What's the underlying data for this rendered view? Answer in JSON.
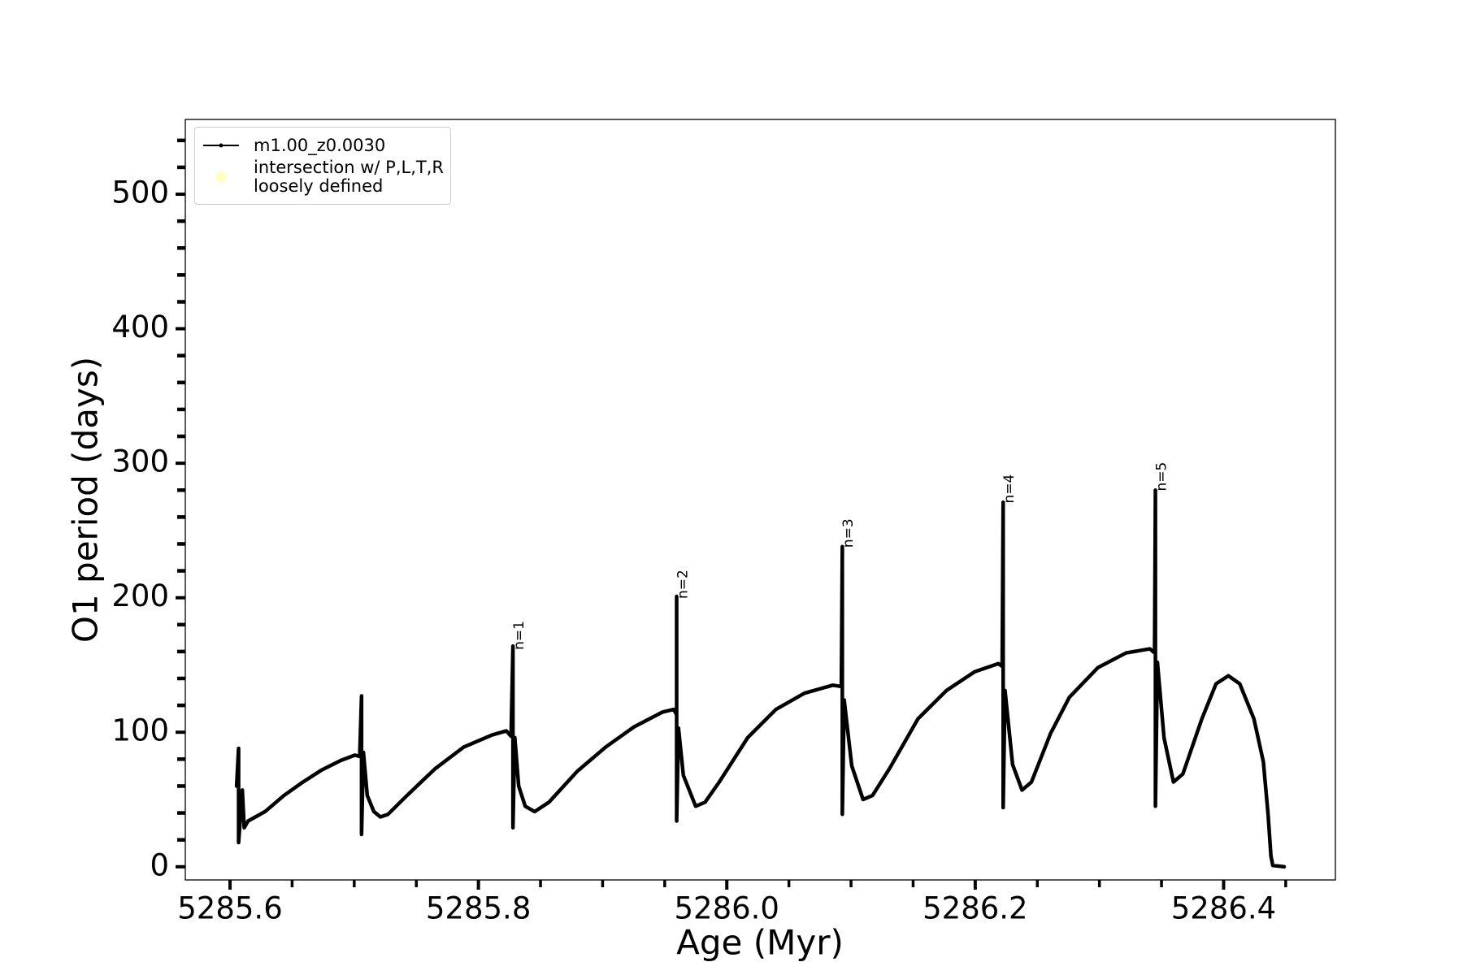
{
  "chart_data": {
    "type": "line",
    "xlabel": "Age (Myr)",
    "ylabel": "O1 period (days)",
    "xlim": [
      5285.564,
      5286.49
    ],
    "ylim": [
      -9.8,
      555.6
    ],
    "xticks": [
      5285.6,
      5285.8,
      {
        "value": 5286,
        "label": "5286.0"
      },
      5286.2,
      5286.4
    ],
    "xticks_minor": [
      5285.65,
      5285.7,
      5285.75,
      5285.85,
      5285.9,
      5285.95,
      5286.05,
      5286.1,
      5286.15,
      5286.25,
      5286.3,
      5286.35,
      5286.45
    ],
    "yticks": [
      0,
      100,
      200,
      300,
      400,
      500
    ],
    "yticks_minor": [
      20,
      40,
      60,
      80,
      120,
      140,
      160,
      180,
      220,
      240,
      260,
      280,
      320,
      340,
      360,
      380,
      420,
      440,
      460,
      480,
      520,
      540
    ],
    "legend": "upper left",
    "series": [
      {
        "name": "m1.00_z0.0030",
        "color": "#000000",
        "type": "line",
        "x": [
          5285.6053,
          5285.6069,
          5285.6069,
          5285.6099,
          5285.6114,
          5285.6145,
          5285.6282,
          5285.6434,
          5285.6587,
          5285.6739,
          5285.6891,
          5285.7006,
          5285.7044,
          5285.7059,
          5285.7059,
          5285.7074,
          5285.7105,
          5285.7158,
          5285.7211,
          5285.7272,
          5285.7425,
          5285.7653,
          5285.7882,
          5285.811,
          5285.8225,
          5285.8263,
          5285.8278,
          5285.8278,
          5285.8293,
          5285.8324,
          5285.8377,
          5285.8453,
          5285.8568,
          5285.8796,
          5285.9025,
          5285.9253,
          5285.9482,
          5285.9573,
          5285.9596,
          5285.9596,
          5285.9596,
          5285.9611,
          5285.965,
          5285.9749,
          5285.9825,
          5285.9939,
          5286.0168,
          5286.0396,
          5286.0625,
          5286.0853,
          5286.0922,
          5286.093,
          5286.093,
          5286.0945,
          5286.1006,
          5286.1097,
          5286.1173,
          5286.131,
          5286.1539,
          5286.1768,
          5286.1996,
          5286.2187,
          5286.2217,
          5286.2225,
          5286.2225,
          5286.224,
          5286.2301,
          5286.2377,
          5286.2453,
          5286.2606,
          5286.2758,
          5286.2987,
          5286.3215,
          5286.3406,
          5286.3444,
          5286.3451,
          5286.3451,
          5286.3467,
          5286.352,
          5286.3596,
          5286.3672,
          5286.3825,
          5286.3939,
          5286.4038,
          5286.413,
          5286.4244,
          5286.432,
          5286.4358,
          5286.4381,
          5286.4396,
          5286.4488
        ],
        "values": [
          60,
          88,
          18,
          57,
          29,
          34,
          41,
          53,
          63,
          72,
          79,
          83,
          82,
          127,
          24,
          85,
          53,
          41,
          37,
          39,
          53,
          73,
          89,
          98,
          101,
          97,
          164,
          29,
          96,
          60,
          45,
          41,
          48,
          71,
          89,
          104,
          115,
          117,
          113,
          201,
          34,
          103,
          68,
          45,
          48,
          63,
          96,
          117,
          129,
          135,
          134,
          238,
          39,
          124,
          75,
          50,
          53,
          73,
          110,
          131,
          145,
          151,
          149,
          271,
          44,
          131,
          76,
          57,
          63,
          99,
          126,
          148,
          159,
          162,
          159,
          280,
          45,
          152,
          96,
          63,
          69,
          110,
          136,
          142,
          136,
          110,
          78,
          39,
          8,
          1,
          0
        ]
      },
      {
        "name": "intersection w/ P,L,T,R\nloosely defined",
        "color": "#ffffc4",
        "type": "scatter",
        "x": [],
        "values": []
      }
    ],
    "annotations": [
      {
        "text": "n=1",
        "x": 5285.8316,
        "y": 160
      },
      {
        "text": "n=2",
        "x": 5285.9634,
        "y": 198
      },
      {
        "text": "n=3",
        "x": 5286.0968,
        "y": 236
      },
      {
        "text": "n=4",
        "x": 5286.2263,
        "y": 269
      },
      {
        "text": "n=5",
        "x": 5286.349,
        "y": 278
      }
    ]
  }
}
